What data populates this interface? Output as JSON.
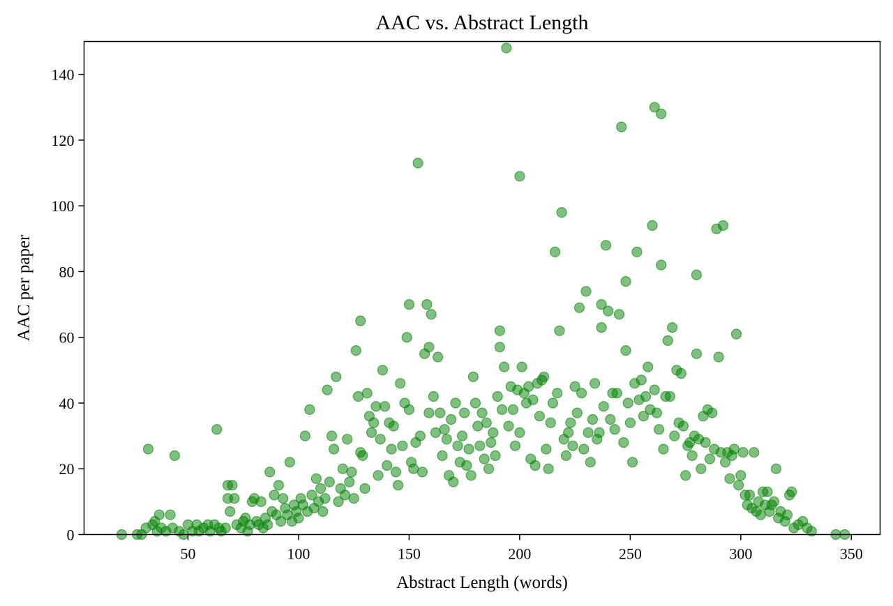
{
  "chart_data": {
    "type": "scatter",
    "title": "AAC vs. Abstract Length",
    "xlabel": "Abstract Length (words)",
    "ylabel": "AAC per paper",
    "xlim": [
      3,
      363
    ],
    "ylim": [
      0,
      150
    ],
    "xticks": [
      50,
      100,
      150,
      200,
      250,
      300,
      350
    ],
    "yticks": [
      0,
      20,
      40,
      60,
      80,
      100,
      120,
      140
    ],
    "grid": false,
    "legend": "none",
    "marker_color": "#008000",
    "marker_alpha": 0.5,
    "points": [
      [
        20,
        0
      ],
      [
        27,
        0
      ],
      [
        29,
        0
      ],
      [
        31,
        2
      ],
      [
        32,
        26
      ],
      [
        34,
        3
      ],
      [
        35,
        4
      ],
      [
        36,
        1
      ],
      [
        37,
        6
      ],
      [
        38,
        2
      ],
      [
        40,
        1
      ],
      [
        42,
        6
      ],
      [
        43,
        2
      ],
      [
        44,
        24
      ],
      [
        46,
        1
      ],
      [
        48,
        0
      ],
      [
        50,
        3
      ],
      [
        52,
        1
      ],
      [
        54,
        3
      ],
      [
        55,
        1
      ],
      [
        57,
        2
      ],
      [
        59,
        3
      ],
      [
        60,
        1
      ],
      [
        62,
        3
      ],
      [
        63,
        32
      ],
      [
        64,
        2
      ],
      [
        65,
        1
      ],
      [
        67,
        2
      ],
      [
        68,
        15
      ],
      [
        68,
        11
      ],
      [
        69,
        7
      ],
      [
        70,
        15
      ],
      [
        71,
        11
      ],
      [
        72,
        3
      ],
      [
        74,
        2
      ],
      [
        75,
        4
      ],
      [
        76,
        5
      ],
      [
        77,
        1
      ],
      [
        78,
        3
      ],
      [
        79,
        10
      ],
      [
        80,
        11
      ],
      [
        81,
        4
      ],
      [
        82,
        3
      ],
      [
        83,
        10
      ],
      [
        84,
        2
      ],
      [
        85,
        5
      ],
      [
        86,
        3
      ],
      [
        87,
        19
      ],
      [
        88,
        7
      ],
      [
        89,
        12
      ],
      [
        90,
        6
      ],
      [
        91,
        15
      ],
      [
        92,
        4
      ],
      [
        93,
        11
      ],
      [
        94,
        8
      ],
      [
        95,
        6
      ],
      [
        96,
        22
      ],
      [
        97,
        4
      ],
      [
        98,
        9
      ],
      [
        99,
        7
      ],
      [
        100,
        5
      ],
      [
        101,
        11
      ],
      [
        102,
        9
      ],
      [
        103,
        30
      ],
      [
        104,
        7
      ],
      [
        105,
        38
      ],
      [
        106,
        12
      ],
      [
        107,
        8
      ],
      [
        108,
        17
      ],
      [
        109,
        10
      ],
      [
        110,
        14
      ],
      [
        111,
        7
      ],
      [
        112,
        11
      ],
      [
        113,
        44
      ],
      [
        114,
        16
      ],
      [
        115,
        30
      ],
      [
        116,
        26
      ],
      [
        117,
        48
      ],
      [
        118,
        10
      ],
      [
        119,
        14
      ],
      [
        120,
        20
      ],
      [
        121,
        12
      ],
      [
        122,
        29
      ],
      [
        123,
        16
      ],
      [
        124,
        19
      ],
      [
        125,
        11
      ],
      [
        126,
        56
      ],
      [
        127,
        42
      ],
      [
        128,
        65
      ],
      [
        128,
        25
      ],
      [
        129,
        24
      ],
      [
        130,
        14
      ],
      [
        131,
        43
      ],
      [
        132,
        36
      ],
      [
        133,
        31
      ],
      [
        134,
        34
      ],
      [
        135,
        39
      ],
      [
        136,
        18
      ],
      [
        137,
        29
      ],
      [
        138,
        50
      ],
      [
        139,
        39
      ],
      [
        140,
        21
      ],
      [
        141,
        34
      ],
      [
        142,
        26
      ],
      [
        143,
        33
      ],
      [
        144,
        19
      ],
      [
        145,
        15
      ],
      [
        146,
        46
      ],
      [
        147,
        27
      ],
      [
        148,
        40
      ],
      [
        149,
        60
      ],
      [
        150,
        70
      ],
      [
        150,
        38
      ],
      [
        151,
        22
      ],
      [
        152,
        20
      ],
      [
        153,
        28
      ],
      [
        154,
        113
      ],
      [
        155,
        30
      ],
      [
        156,
        19
      ],
      [
        157,
        55
      ],
      [
        158,
        70
      ],
      [
        159,
        57
      ],
      [
        159,
        37
      ],
      [
        160,
        67
      ],
      [
        161,
        42
      ],
      [
        162,
        31
      ],
      [
        163,
        54
      ],
      [
        164,
        37
      ],
      [
        165,
        24
      ],
      [
        166,
        32
      ],
      [
        167,
        29
      ],
      [
        168,
        18
      ],
      [
        169,
        35
      ],
      [
        170,
        16
      ],
      [
        171,
        40
      ],
      [
        172,
        27
      ],
      [
        173,
        22
      ],
      [
        174,
        30
      ],
      [
        175,
        37
      ],
      [
        176,
        21
      ],
      [
        177,
        26
      ],
      [
        178,
        18
      ],
      [
        179,
        48
      ],
      [
        180,
        40
      ],
      [
        181,
        33
      ],
      [
        182,
        27
      ],
      [
        183,
        37
      ],
      [
        184,
        23
      ],
      [
        185,
        34
      ],
      [
        186,
        20
      ],
      [
        187,
        28
      ],
      [
        188,
        31
      ],
      [
        189,
        24
      ],
      [
        190,
        42
      ],
      [
        191,
        62
      ],
      [
        191,
        57
      ],
      [
        192,
        38
      ],
      [
        193,
        51
      ],
      [
        194,
        148
      ],
      [
        195,
        33
      ],
      [
        196,
        45
      ],
      [
        197,
        38
      ],
      [
        198,
        27
      ],
      [
        199,
        44
      ],
      [
        200,
        109
      ],
      [
        200,
        31
      ],
      [
        201,
        51
      ],
      [
        202,
        43
      ],
      [
        203,
        40
      ],
      [
        204,
        45
      ],
      [
        205,
        23
      ],
      [
        206,
        41
      ],
      [
        207,
        21
      ],
      [
        208,
        46
      ],
      [
        209,
        36
      ],
      [
        210,
        47
      ],
      [
        211,
        48
      ],
      [
        212,
        26
      ],
      [
        213,
        20
      ],
      [
        214,
        34
      ],
      [
        215,
        40
      ],
      [
        216,
        86
      ],
      [
        217,
        43
      ],
      [
        218,
        62
      ],
      [
        219,
        98
      ],
      [
        220,
        29
      ],
      [
        221,
        24
      ],
      [
        222,
        31
      ],
      [
        223,
        34
      ],
      [
        224,
        27
      ],
      [
        225,
        45
      ],
      [
        226,
        37
      ],
      [
        227,
        69
      ],
      [
        228,
        43
      ],
      [
        229,
        26
      ],
      [
        230,
        74
      ],
      [
        231,
        31
      ],
      [
        232,
        22
      ],
      [
        233,
        35
      ],
      [
        234,
        46
      ],
      [
        235,
        29
      ],
      [
        236,
        31
      ],
      [
        237,
        70
      ],
      [
        237,
        63
      ],
      [
        238,
        39
      ],
      [
        239,
        88
      ],
      [
        240,
        68
      ],
      [
        241,
        35
      ],
      [
        242,
        43
      ],
      [
        243,
        32
      ],
      [
        244,
        43
      ],
      [
        245,
        67
      ],
      [
        246,
        124
      ],
      [
        247,
        28
      ],
      [
        248,
        77
      ],
      [
        248,
        56
      ],
      [
        249,
        40
      ],
      [
        250,
        34
      ],
      [
        251,
        22
      ],
      [
        252,
        46
      ],
      [
        253,
        86
      ],
      [
        254,
        41
      ],
      [
        255,
        47
      ],
      [
        256,
        36
      ],
      [
        257,
        42
      ],
      [
        258,
        51
      ],
      [
        259,
        38
      ],
      [
        260,
        94
      ],
      [
        261,
        130
      ],
      [
        261,
        44
      ],
      [
        262,
        37
      ],
      [
        263,
        32
      ],
      [
        264,
        128
      ],
      [
        264,
        82
      ],
      [
        265,
        26
      ],
      [
        266,
        42
      ],
      [
        267,
        59
      ],
      [
        268,
        42
      ],
      [
        269,
        63
      ],
      [
        270,
        30
      ],
      [
        271,
        50
      ],
      [
        272,
        34
      ],
      [
        273,
        49
      ],
      [
        274,
        33
      ],
      [
        275,
        18
      ],
      [
        276,
        27
      ],
      [
        277,
        28
      ],
      [
        278,
        24
      ],
      [
        279,
        30
      ],
      [
        280,
        79
      ],
      [
        280,
        55
      ],
      [
        281,
        29
      ],
      [
        282,
        20
      ],
      [
        283,
        36
      ],
      [
        284,
        28
      ],
      [
        285,
        38
      ],
      [
        286,
        23
      ],
      [
        287,
        37
      ],
      [
        288,
        26
      ],
      [
        289,
        93
      ],
      [
        290,
        54
      ],
      [
        291,
        25
      ],
      [
        292,
        94
      ],
      [
        293,
        22
      ],
      [
        294,
        25
      ],
      [
        295,
        17
      ],
      [
        296,
        24
      ],
      [
        297,
        26
      ],
      [
        298,
        61
      ],
      [
        299,
        15
      ],
      [
        300,
        18
      ],
      [
        301,
        25
      ],
      [
        302,
        12
      ],
      [
        303,
        9
      ],
      [
        304,
        12
      ],
      [
        305,
        8
      ],
      [
        306,
        25
      ],
      [
        307,
        7
      ],
      [
        308,
        10
      ],
      [
        309,
        6
      ],
      [
        310,
        13
      ],
      [
        311,
        9
      ],
      [
        312,
        13
      ],
      [
        313,
        7
      ],
      [
        314,
        9
      ],
      [
        315,
        10
      ],
      [
        316,
        20
      ],
      [
        317,
        5
      ],
      [
        318,
        7
      ],
      [
        320,
        4
      ],
      [
        321,
        6
      ],
      [
        322,
        12
      ],
      [
        323,
        13
      ],
      [
        324,
        2
      ],
      [
        326,
        3
      ],
      [
        328,
        4
      ],
      [
        330,
        2
      ],
      [
        332,
        1
      ],
      [
        343,
        0
      ],
      [
        347,
        0
      ]
    ]
  }
}
